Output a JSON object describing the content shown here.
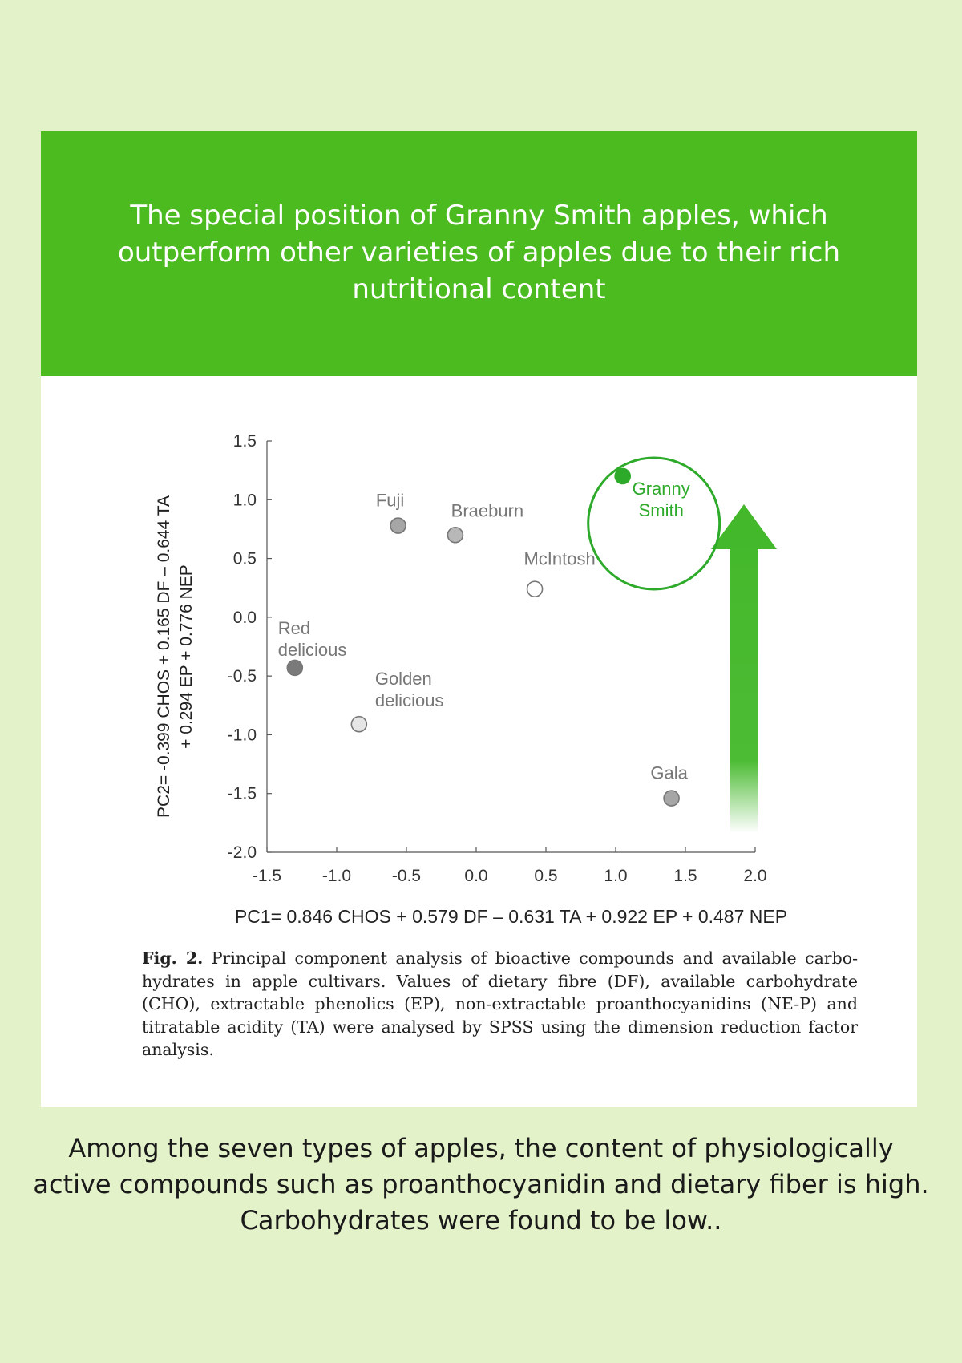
{
  "banner": {
    "title": "The special position of Granny Smith apples, which outperform other varieties of apples due to their rich nutritional content"
  },
  "chart_data": {
    "type": "scatter",
    "title": "",
    "xlabel": "PC1= 0.846 CHOS  + 0.579 DF – 0.631 TA + 0.922 EP + 0.487 NEP",
    "ylabel": [
      "PC2= -0.399 CHOS  + 0.165 DF – 0.644 TA",
      "+ 0.294 EP + 0.776 NEP"
    ],
    "xlim": [
      -1.5,
      2.0
    ],
    "ylim": [
      -2.0,
      1.5
    ],
    "x_ticks": [
      "-1.5",
      "-1.0",
      "-0.5",
      "0.0",
      "0.5",
      "1.0",
      "1.5",
      "2.0"
    ],
    "y_ticks": [
      "1.5",
      "1.0",
      "0.5",
      "0.0",
      "-0.5",
      "-1.0",
      "-1.5",
      "-2.0"
    ],
    "grid": false,
    "points": [
      {
        "label": [
          "Fuji"
        ],
        "x": -0.56,
        "y": 0.78,
        "color": "#a6a6a6"
      },
      {
        "label": [
          "Braeburn"
        ],
        "x": -0.15,
        "y": 0.7,
        "color": "#b8b8b8"
      },
      {
        "label": [
          "McIntosh"
        ],
        "x": 0.42,
        "y": 0.24,
        "color": "#ffffff"
      },
      {
        "label": [
          "Red",
          "delicious"
        ],
        "x": -1.3,
        "y": -0.43,
        "color": "#7a7a7a"
      },
      {
        "label": [
          "Golden",
          "delicious"
        ],
        "x": -0.84,
        "y": -0.91,
        "color": "#e6e6e6"
      },
      {
        "label": [
          "Gala"
        ],
        "x": 1.4,
        "y": -1.54,
        "color": "#a6a6a6"
      },
      {
        "label": [
          "Granny",
          "Smith"
        ],
        "x": 1.05,
        "y": 1.2,
        "color": "#2daa2a",
        "highlight": true
      }
    ]
  },
  "caption": {
    "fig_label": "Fig. 2.",
    "text": "Principal component analysis of bioactive compounds and available carbo-hydrates in apple cultivars. Values of dietary fibre (DF), available carbohydrate (CHO), extractable phenolics (EP), non-extractable proanthocyanidins (NE-P) and titratable acidity (TA) were analysed by SPSS using the dimension reduction factor analysis."
  },
  "footer": {
    "lines": [
      "Among the seven types of apples, the content of physiologically",
      "active compounds such as proanthocyanidin and dietary fiber is high.",
      "Carbohydrates were found to be low.."
    ]
  },
  "colors": {
    "page_background": "#e3f2c9",
    "banner": "#4bbb20",
    "highlight_green": "#2daa2a",
    "arrow_green": "#43b82a"
  }
}
